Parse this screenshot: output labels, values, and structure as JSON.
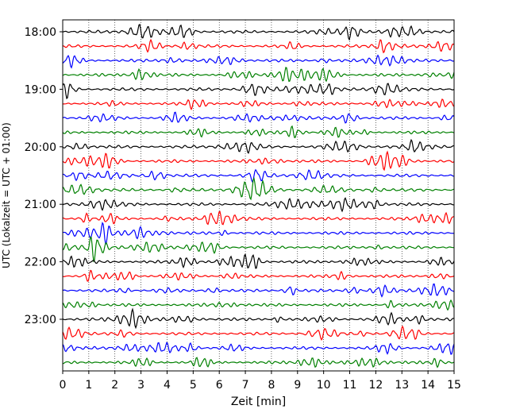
{
  "chart_data": {
    "type": "line",
    "title": "",
    "xlabel": "Zeit  [min]",
    "ylabel": "UTC (Lokalzeit = UTC + 01:00)",
    "xlim": [
      0,
      15
    ],
    "x_ticks": [
      "0",
      "1",
      "2",
      "3",
      "4",
      "5",
      "6",
      "7",
      "8",
      "9",
      "10",
      "11",
      "12",
      "13",
      "14",
      "15"
    ],
    "y_tick_labels": [
      "18:00",
      "19:00",
      "20:00",
      "21:00",
      "22:00",
      "23:00"
    ],
    "grid": "vertical dotted at each minute",
    "trace_interval_min": 15,
    "traces_per_hour": 4,
    "trace_start_times": [
      "18:00",
      "18:15",
      "18:30",
      "18:45",
      "19:00",
      "19:15",
      "19:30",
      "19:45",
      "20:00",
      "20:15",
      "20:30",
      "20:45",
      "21:00",
      "21:15",
      "21:30",
      "21:45",
      "22:00",
      "22:15",
      "22:30",
      "22:45",
      "23:00",
      "23:15",
      "23:30",
      "23:45"
    ],
    "color_cycle": [
      "#000000",
      "#ff0000",
      "#0000ff",
      "#008000"
    ]
  }
}
